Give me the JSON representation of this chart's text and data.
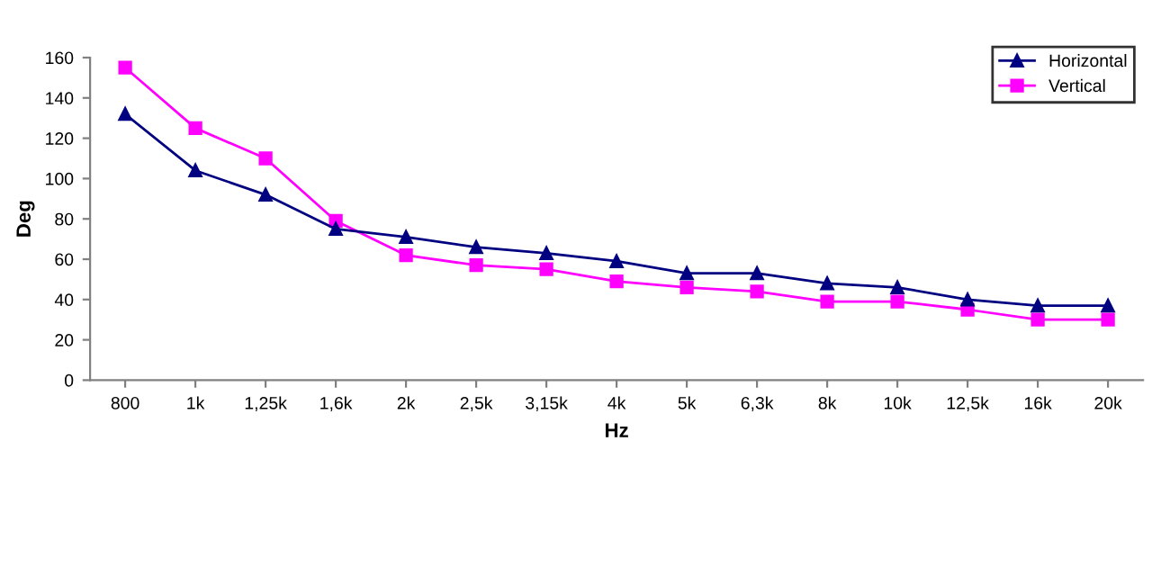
{
  "chart_data": {
    "type": "line",
    "xlabel": "Hz",
    "ylabel": "Deg",
    "categories": [
      "800",
      "1k",
      "1,25k",
      "1,6k",
      "2k",
      "2,5k",
      "3,15k",
      "4k",
      "5k",
      "6,3k",
      "8k",
      "10k",
      "12,5k",
      "16k",
      "20k"
    ],
    "series": [
      {
        "name": "Horizontal",
        "color": "#000080",
        "marker": "triangle",
        "values": [
          132,
          104,
          92,
          75,
          71,
          66,
          63,
          59,
          53,
          53,
          48,
          46,
          40,
          37,
          37
        ]
      },
      {
        "name": "Vertical",
        "color": "#ff00ff",
        "marker": "square",
        "values": [
          155,
          125,
          110,
          79,
          62,
          57,
          55,
          49,
          46,
          44,
          39,
          39,
          35,
          30,
          30
        ]
      }
    ],
    "ylim": [
      0,
      160
    ],
    "yticks": [
      0,
      20,
      40,
      60,
      80,
      100,
      120,
      140,
      160
    ],
    "grid": false,
    "legend": "top right",
    "line_style": "solid"
  }
}
